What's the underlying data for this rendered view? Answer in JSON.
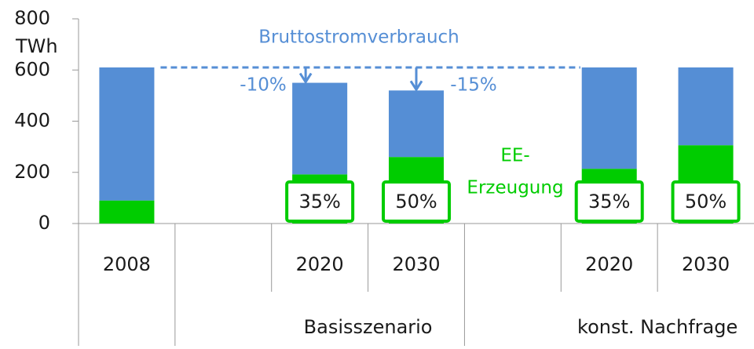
{
  "chart_data": {
    "type": "stacked_bar",
    "y_label": "TWh",
    "categories": [
      "2008",
      null,
      "2020",
      "2030",
      null,
      "2020",
      "2030"
    ],
    "groups": [
      {
        "label": "Basisszenario",
        "from": 2,
        "to": 3
      },
      {
        "label": "konst. Nachfrage",
        "from": 5,
        "to": 6
      }
    ],
    "series": [
      {
        "color": "#00cc00",
        "values": [
          90,
          null,
          192,
          260,
          null,
          214,
          306
        ]
      },
      {
        "color": "#558ed5",
        "values": [
          520,
          null,
          358,
          260,
          null,
          396,
          304
        ]
      }
    ],
    "share_labels": [
      null,
      null,
      "35%",
      "50%",
      null,
      "35%",
      "50%"
    ],
    "ylim": [
      0,
      800
    ],
    "yticks": [
      0,
      200,
      400,
      600,
      800
    ],
    "annotations": {
      "consumption": "Bruttostromverbrauch",
      "change_2020": "-10%",
      "change_2030": "-15%",
      "renewables_1": "EE-",
      "renewables_2": "Erzeugung"
    }
  }
}
